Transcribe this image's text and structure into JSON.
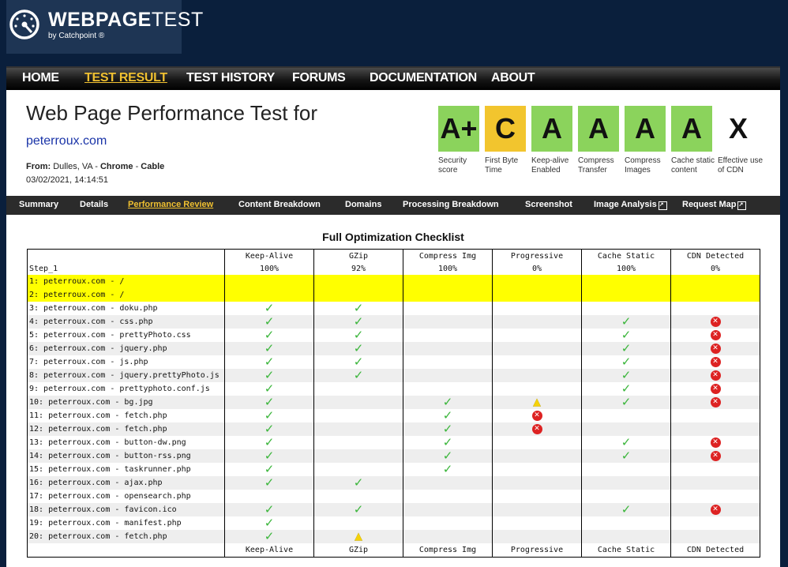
{
  "logo": {
    "brand_bold": "WEBPAGE",
    "brand_light": "TEST",
    "by": "by Catchpoint ®"
  },
  "nav": {
    "home": "HOME",
    "test_result": "TEST RESULT",
    "test_history": "TEST HISTORY",
    "forums": "FORUMS",
    "documentation": "DOCUMENTATION",
    "about": "ABOUT"
  },
  "header": {
    "title": "Web Page Performance Test for",
    "site": "peterroux.com",
    "from_label": "From:",
    "location": "Dulles, VA",
    "sep": " - ",
    "browser": "Chrome",
    "connection": "Cable",
    "date": "03/02/2021, 14:14:51"
  },
  "grades": [
    {
      "grade": "A+",
      "label": "Security score",
      "color": "#8bd35c"
    },
    {
      "grade": "C",
      "label": "First Byte Time",
      "color": "#f2c52e"
    },
    {
      "grade": "A",
      "label": "Keep-alive Enabled",
      "color": "#8bd35c"
    },
    {
      "grade": "A",
      "label": "Compress Transfer",
      "color": "#8bd35c"
    },
    {
      "grade": "A",
      "label": "Compress Images",
      "color": "#8bd35c"
    },
    {
      "grade": "A",
      "label": "Cache static content",
      "color": "#8bd35c"
    },
    {
      "grade": "X",
      "label": "Effective use of CDN",
      "color": "#ffffff"
    }
  ],
  "subnav": {
    "summary": "Summary",
    "details": "Details",
    "performance_review": "Performance Review",
    "content_breakdown": "Content Breakdown",
    "domains": "Domains",
    "processing_breakdown": "Processing Breakdown",
    "screenshot": "Screenshot",
    "image_analysis": "Image Analysis",
    "request_map": "Request Map"
  },
  "checklist": {
    "title": "Full Optimization Checklist",
    "step": "Step_1",
    "columns": [
      "Keep-Alive",
      "GZip",
      "Compress Img",
      "Progressive",
      "Cache Static",
      "CDN Detected"
    ],
    "scores": [
      "100%",
      "92%",
      "100%",
      "0%",
      "100%",
      "0%"
    ],
    "rows": [
      {
        "url": "1: peterroux.com - /",
        "c": [
          "",
          "",
          "",
          "",
          "",
          ""
        ]
      },
      {
        "url": "2: peterroux.com - /",
        "c": [
          "",
          "",
          "",
          "",
          "",
          ""
        ]
      },
      {
        "url": "3: peterroux.com - doku.php",
        "c": [
          "ok",
          "ok",
          "",
          "",
          "",
          ""
        ]
      },
      {
        "url": "4: peterroux.com - css.php",
        "c": [
          "ok",
          "ok",
          "",
          "",
          "ok",
          "bad"
        ]
      },
      {
        "url": "5: peterroux.com - prettyPhoto.css",
        "c": [
          "ok",
          "ok",
          "",
          "",
          "ok",
          "bad"
        ]
      },
      {
        "url": "6: peterroux.com - jquery.php",
        "c": [
          "ok",
          "ok",
          "",
          "",
          "ok",
          "bad"
        ]
      },
      {
        "url": "7: peterroux.com - js.php",
        "c": [
          "ok",
          "ok",
          "",
          "",
          "ok",
          "bad"
        ]
      },
      {
        "url": "8: peterroux.com - jquery.prettyPhoto.js",
        "c": [
          "ok",
          "ok",
          "",
          "",
          "ok",
          "bad"
        ]
      },
      {
        "url": "9: peterroux.com - prettyphoto.conf.js",
        "c": [
          "ok",
          "",
          "",
          "",
          "ok",
          "bad"
        ]
      },
      {
        "url": "10: peterroux.com - bg.jpg",
        "c": [
          "ok",
          "",
          "ok",
          "warn",
          "ok",
          "bad"
        ]
      },
      {
        "url": "11: peterroux.com - fetch.php",
        "c": [
          "ok",
          "",
          "ok",
          "bad",
          "",
          ""
        ]
      },
      {
        "url": "12: peterroux.com - fetch.php",
        "c": [
          "ok",
          "",
          "ok",
          "bad",
          "",
          ""
        ]
      },
      {
        "url": "13: peterroux.com - button-dw.png",
        "c": [
          "ok",
          "",
          "ok",
          "",
          "ok",
          "bad"
        ]
      },
      {
        "url": "14: peterroux.com - button-rss.png",
        "c": [
          "ok",
          "",
          "ok",
          "",
          "ok",
          "bad"
        ]
      },
      {
        "url": "15: peterroux.com - taskrunner.php",
        "c": [
          "ok",
          "",
          "ok",
          "",
          "",
          ""
        ]
      },
      {
        "url": "16: peterroux.com - ajax.php",
        "c": [
          "ok",
          "ok",
          "",
          "",
          "",
          ""
        ]
      },
      {
        "url": "17: peterroux.com - opensearch.php",
        "c": [
          "",
          "",
          "",
          "",
          "",
          ""
        ]
      },
      {
        "url": "18: peterroux.com - favicon.ico",
        "c": [
          "ok",
          "ok",
          "",
          "",
          "ok",
          "bad"
        ]
      },
      {
        "url": "19: peterroux.com - manifest.php",
        "c": [
          "ok",
          "",
          "",
          "",
          "",
          ""
        ]
      },
      {
        "url": "20: peterroux.com - fetch.php",
        "c": [
          "ok",
          "warn",
          "",
          "",
          "",
          ""
        ]
      }
    ]
  }
}
